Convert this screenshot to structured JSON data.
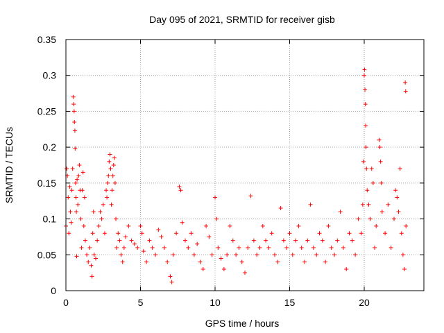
{
  "chart_data": {
    "type": "scatter",
    "title": "Day 095 of 2021, SRMTID for receiver gisb",
    "xlabel": "GPS time / hours",
    "ylabel": "SRMTID / TECUs",
    "xlim": [
      0,
      24
    ],
    "ylim": [
      0,
      0.35
    ],
    "xticks": [
      0,
      5,
      10,
      15,
      20
    ],
    "yticks": [
      0,
      0.05,
      0.1,
      0.15,
      0.2,
      0.25,
      0.3,
      0.35
    ],
    "ytick_labels": [
      "0",
      "0.05",
      "0.1",
      "0.15",
      "0.2",
      "0.25",
      "0.3",
      "0.35"
    ],
    "grid": true,
    "marker": "+",
    "color": "#ff0000",
    "series": [
      {
        "name": "SRMTID",
        "points": [
          [
            0.0,
            0.09
          ],
          [
            0.05,
            0.17
          ],
          [
            0.1,
            0.16
          ],
          [
            0.15,
            0.13
          ],
          [
            0.2,
            0.08
          ],
          [
            0.25,
            0.145
          ],
          [
            0.3,
            0.11
          ],
          [
            0.35,
            0.095
          ],
          [
            0.4,
            0.14
          ],
          [
            0.45,
            0.17
          ],
          [
            0.5,
            0.27
          ],
          [
            0.52,
            0.26
          ],
          [
            0.55,
            0.25
          ],
          [
            0.57,
            0.235
          ],
          [
            0.6,
            0.223
          ],
          [
            0.62,
            0.198
          ],
          [
            0.65,
            0.15
          ],
          [
            0.68,
            0.13
          ],
          [
            0.7,
            0.11
          ],
          [
            0.72,
            0.048
          ],
          [
            0.75,
            0.155
          ],
          [
            0.8,
            0.12
          ],
          [
            0.85,
            0.16
          ],
          [
            0.9,
            0.175
          ],
          [
            0.95,
            0.14
          ],
          [
            1.0,
            0.1
          ],
          [
            1.05,
            0.06
          ],
          [
            1.1,
            0.14
          ],
          [
            1.15,
            0.165
          ],
          [
            1.2,
            0.09
          ],
          [
            1.25,
            0.13
          ],
          [
            1.3,
            0.07
          ],
          [
            1.4,
            0.05
          ],
          [
            1.5,
            0.04
          ],
          [
            1.6,
            0.06
          ],
          [
            1.7,
            0.035
          ],
          [
            1.75,
            0.02
          ],
          [
            1.8,
            0.08
          ],
          [
            1.85,
            0.11
          ],
          [
            1.9,
            0.05
          ],
          [
            2.0,
            0.045
          ],
          [
            2.1,
            0.07
          ],
          [
            2.2,
            0.09
          ],
          [
            2.3,
            0.11
          ],
          [
            2.4,
            0.1
          ],
          [
            2.5,
            0.12
          ],
          [
            2.6,
            0.08
          ],
          [
            2.7,
            0.14
          ],
          [
            2.75,
            0.13
          ],
          [
            2.8,
            0.15
          ],
          [
            2.85,
            0.16
          ],
          [
            2.9,
            0.18
          ],
          [
            2.95,
            0.19
          ],
          [
            3.0,
            0.17
          ],
          [
            3.05,
            0.12
          ],
          [
            3.1,
            0.14
          ],
          [
            3.15,
            0.16
          ],
          [
            3.2,
            0.175
          ],
          [
            3.25,
            0.185
          ],
          [
            3.3,
            0.15
          ],
          [
            3.35,
            0.1
          ],
          [
            3.4,
            0.06
          ],
          [
            3.5,
            0.08
          ],
          [
            3.6,
            0.07
          ],
          [
            3.7,
            0.05
          ],
          [
            3.8,
            0.04
          ],
          [
            3.9,
            0.06
          ],
          [
            4.0,
            0.075
          ],
          [
            4.2,
            0.09
          ],
          [
            4.4,
            0.07
          ],
          [
            4.6,
            0.065
          ],
          [
            4.8,
            0.06
          ],
          [
            5.0,
            0.09
          ],
          [
            5.1,
            0.08
          ],
          [
            5.2,
            0.055
          ],
          [
            5.4,
            0.04
          ],
          [
            5.6,
            0.07
          ],
          [
            5.8,
            0.06
          ],
          [
            6.0,
            0.05
          ],
          [
            6.2,
            0.085
          ],
          [
            6.4,
            0.075
          ],
          [
            6.6,
            0.06
          ],
          [
            6.8,
            0.04
          ],
          [
            7.0,
            0.02
          ],
          [
            7.1,
            0.012
          ],
          [
            7.2,
            0.05
          ],
          [
            7.4,
            0.08
          ],
          [
            7.6,
            0.145
          ],
          [
            7.7,
            0.14
          ],
          [
            7.8,
            0.095
          ],
          [
            8.0,
            0.07
          ],
          [
            8.2,
            0.06
          ],
          [
            8.4,
            0.08
          ],
          [
            8.6,
            0.05
          ],
          [
            8.8,
            0.065
          ],
          [
            9.0,
            0.04
          ],
          [
            9.2,
            0.03
          ],
          [
            9.4,
            0.09
          ],
          [
            9.6,
            0.075
          ],
          [
            9.8,
            0.05
          ],
          [
            10.0,
            0.13
          ],
          [
            10.1,
            0.1
          ],
          [
            10.2,
            0.06
          ],
          [
            10.4,
            0.045
          ],
          [
            10.6,
            0.03
          ],
          [
            10.8,
            0.05
          ],
          [
            11.0,
            0.09
          ],
          [
            11.2,
            0.07
          ],
          [
            11.4,
            0.05
          ],
          [
            11.6,
            0.06
          ],
          [
            11.8,
            0.04
          ],
          [
            12.0,
            0.025
          ],
          [
            12.2,
            0.06
          ],
          [
            12.4,
            0.132
          ],
          [
            12.6,
            0.07
          ],
          [
            12.8,
            0.05
          ],
          [
            13.0,
            0.06
          ],
          [
            13.2,
            0.09
          ],
          [
            13.4,
            0.07
          ],
          [
            13.6,
            0.06
          ],
          [
            13.8,
            0.08
          ],
          [
            14.0,
            0.05
          ],
          [
            14.2,
            0.04
          ],
          [
            14.4,
            0.115
          ],
          [
            14.6,
            0.07
          ],
          [
            14.8,
            0.06
          ],
          [
            15.0,
            0.08
          ],
          [
            15.2,
            0.05
          ],
          [
            15.4,
            0.07
          ],
          [
            15.6,
            0.09
          ],
          [
            15.8,
            0.06
          ],
          [
            16.0,
            0.04
          ],
          [
            16.2,
            0.07
          ],
          [
            16.4,
            0.12
          ],
          [
            16.6,
            0.06
          ],
          [
            16.8,
            0.05
          ],
          [
            17.0,
            0.08
          ],
          [
            17.2,
            0.07
          ],
          [
            17.4,
            0.04
          ],
          [
            17.6,
            0.09
          ],
          [
            17.8,
            0.06
          ],
          [
            18.0,
            0.05
          ],
          [
            18.2,
            0.07
          ],
          [
            18.4,
            0.11
          ],
          [
            18.6,
            0.06
          ],
          [
            18.8,
            0.03
          ],
          [
            19.0,
            0.08
          ],
          [
            19.2,
            0.07
          ],
          [
            19.4,
            0.05
          ],
          [
            19.6,
            0.1
          ],
          [
            19.8,
            0.08
          ],
          [
            19.9,
            0.12
          ],
          [
            19.95,
            0.18
          ],
          [
            20.0,
            0.3
          ],
          [
            20.02,
            0.308
          ],
          [
            20.05,
            0.28
          ],
          [
            20.08,
            0.26
          ],
          [
            20.1,
            0.23
          ],
          [
            20.12,
            0.2
          ],
          [
            20.15,
            0.17
          ],
          [
            20.2,
            0.14
          ],
          [
            20.3,
            0.12
          ],
          [
            20.4,
            0.1
          ],
          [
            20.5,
            0.17
          ],
          [
            20.6,
            0.15
          ],
          [
            20.7,
            0.06
          ],
          [
            20.8,
            0.09
          ],
          [
            21.0,
            0.21
          ],
          [
            21.05,
            0.2
          ],
          [
            21.1,
            0.18
          ],
          [
            21.15,
            0.15
          ],
          [
            21.2,
            0.11
          ],
          [
            21.4,
            0.08
          ],
          [
            21.6,
            0.12
          ],
          [
            21.8,
            0.06
          ],
          [
            22.0,
            0.1
          ],
          [
            22.1,
            0.14
          ],
          [
            22.2,
            0.13
          ],
          [
            22.3,
            0.11
          ],
          [
            22.4,
            0.17
          ],
          [
            22.5,
            0.08
          ],
          [
            22.6,
            0.05
          ],
          [
            22.7,
            0.03
          ],
          [
            22.75,
            0.29
          ],
          [
            22.78,
            0.278
          ],
          [
            22.8,
            0.09
          ]
        ]
      }
    ]
  }
}
